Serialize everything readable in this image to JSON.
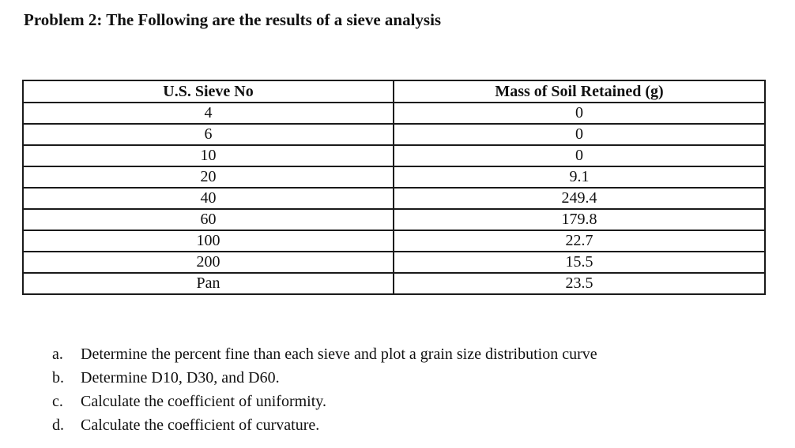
{
  "title": "Problem 2: The Following are the results of a sieve analysis",
  "table": {
    "headers": [
      "U.S. Sieve No",
      "Mass of Soil Retained (g)"
    ],
    "rows": [
      {
        "sieve": "4",
        "mass": "0"
      },
      {
        "sieve": "6",
        "mass": "0"
      },
      {
        "sieve": "10",
        "mass": "0"
      },
      {
        "sieve": "20",
        "mass": "9.1"
      },
      {
        "sieve": "40",
        "mass": "249.4"
      },
      {
        "sieve": "60",
        "mass": "179.8"
      },
      {
        "sieve": "100",
        "mass": "22.7"
      },
      {
        "sieve": "200",
        "mass": "15.5"
      },
      {
        "sieve": "Pan",
        "mass": "23.5"
      }
    ]
  },
  "questions": [
    {
      "letter": "a.",
      "text": "Determine the percent fine than each sieve and plot a grain size distribution curve"
    },
    {
      "letter": "b.",
      "text": "Determine D10, D30, and D60."
    },
    {
      "letter": "c.",
      "text": "Calculate the coefficient of uniformity."
    },
    {
      "letter": "d.",
      "text": "Calculate the coefficient of curvature."
    }
  ]
}
